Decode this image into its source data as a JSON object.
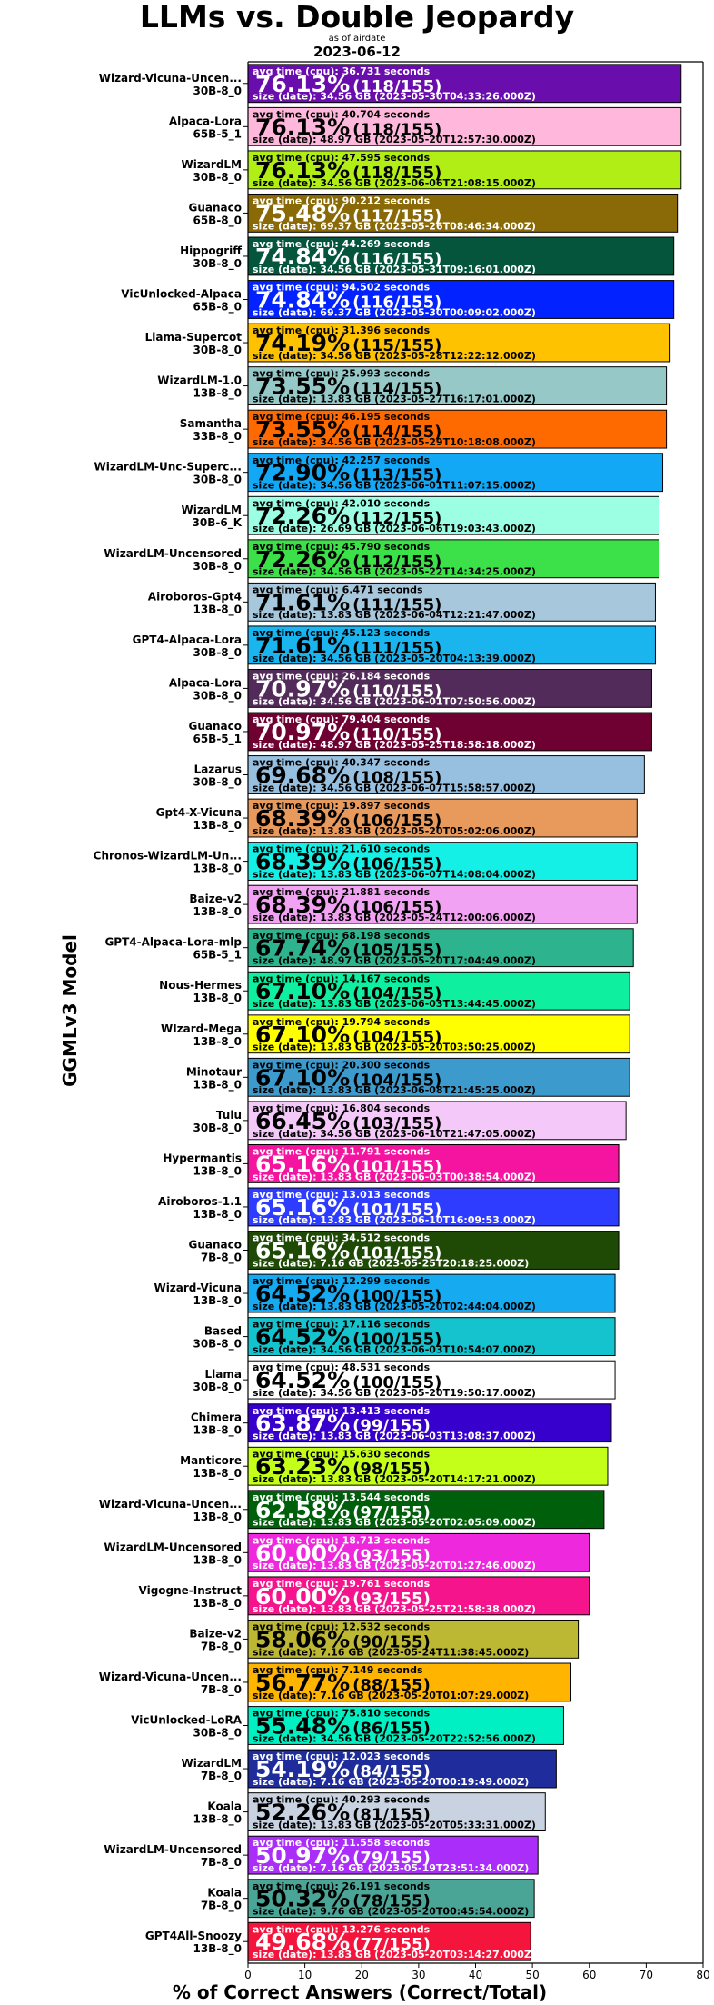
{
  "chart_data": {
    "type": "bar",
    "orientation": "horizontal",
    "title": "LLMs vs. Double Jeopardy",
    "subtitle_small": "as of airdate",
    "subtitle_date": "2023-06-12",
    "xlabel": "% of Correct Answers (Correct/Total)",
    "ylabel": "GGMLv3 Model",
    "xlim": [
      0,
      80
    ],
    "xticks": [
      0,
      10,
      20,
      30,
      40,
      50,
      60,
      70,
      80
    ],
    "grid": false,
    "legend": "none",
    "label_prefix_time": "avg time (cpu): ",
    "label_prefix_size": "size (date): ",
    "bars": [
      {
        "name": "Wizard-Vicuna-Uncen...",
        "quant": "30B-8_0",
        "value": 76.13,
        "correct": "(118/155)",
        "time": "36.731 seconds",
        "size": "34.56 GB (2023-05-30T04:33:26.000Z)",
        "color": "#6a0dad",
        "text": "light"
      },
      {
        "name": "Alpaca-Lora",
        "quant": "65B-5_1",
        "value": 76.13,
        "correct": "(118/155)",
        "time": "40.704 seconds",
        "size": "48.97 GB (2023-05-20T12:57:30.000Z)",
        "color": "#ffb8dc",
        "text": "dark"
      },
      {
        "name": "WizardLM",
        "quant": "30B-8_0",
        "value": 76.13,
        "correct": "(118/155)",
        "time": "47.595 seconds",
        "size": "34.56 GB (2023-06-06T21:08:15.000Z)",
        "color": "#b0ee15",
        "text": "dark"
      },
      {
        "name": "Guanaco",
        "quant": "65B-8_0",
        "value": 75.48,
        "correct": "(117/155)",
        "time": "90.212 seconds",
        "size": "69.37 GB (2023-05-26T08:46:34.000Z)",
        "color": "#8a6a06",
        "text": "light"
      },
      {
        "name": "Hippogriff",
        "quant": "30B-8_0",
        "value": 74.84,
        "correct": "(116/155)",
        "time": "44.269 seconds",
        "size": "34.56 GB (2023-05-31T09:16:01.000Z)",
        "color": "#04553b",
        "text": "light"
      },
      {
        "name": "VicUnlocked-Alpaca",
        "quant": "65B-8_0",
        "value": 74.84,
        "correct": "(116/155)",
        "time": "94.502 seconds",
        "size": "69.37 GB (2023-05-30T00:09:02.000Z)",
        "color": "#0222ff",
        "text": "light"
      },
      {
        "name": "Llama-Supercot",
        "quant": "30B-8_0",
        "value": 74.19,
        "correct": "(115/155)",
        "time": "31.396 seconds",
        "size": "34.56 GB (2023-05-28T12:22:12.000Z)",
        "color": "#ffc200",
        "text": "dark"
      },
      {
        "name": "WizardLM-1.0",
        "quant": "13B-8_0",
        "value": 73.55,
        "correct": "(114/155)",
        "time": "25.993 seconds",
        "size": "13.83 GB (2023-05-27T16:17:01.000Z)",
        "color": "#96c8c8",
        "text": "dark"
      },
      {
        "name": "Samantha",
        "quant": "33B-8_0",
        "value": 73.55,
        "correct": "(114/155)",
        "time": "46.195 seconds",
        "size": "34.56 GB (2023-05-29T10:18:08.000Z)",
        "color": "#ff6a00",
        "text": "dark"
      },
      {
        "name": "WizardLM-Unc-Superc...",
        "quant": "30B-8_0",
        "value": 72.9,
        "correct": "(113/155)",
        "time": "42.257 seconds",
        "size": "34.56 GB (2023-06-01T11:07:15.000Z)",
        "color": "#12a8f5",
        "text": "dark"
      },
      {
        "name": "WizardLM",
        "quant": "30B-6_K",
        "value": 72.26,
        "correct": "(112/155)",
        "time": "42.010 seconds",
        "size": "26.69 GB (2023-06-06T19:03:43.000Z)",
        "color": "#9cffe4",
        "text": "dark"
      },
      {
        "name": "WizardLM-Uncensored",
        "quant": "30B-8_0",
        "value": 72.26,
        "correct": "(112/155)",
        "time": "45.790 seconds",
        "size": "34.56 GB (2023-05-22T14:34:25.000Z)",
        "color": "#3ce048",
        "text": "dark"
      },
      {
        "name": "Airoboros-Gpt4",
        "quant": "13B-8_0",
        "value": 71.61,
        "correct": "(111/155)",
        "time": "6.471 seconds",
        "size": "13.83 GB (2023-06-04T12:21:47.000Z)",
        "color": "#a7c8dc",
        "text": "dark"
      },
      {
        "name": "GPT4-Alpaca-Lora",
        "quant": "30B-8_0",
        "value": 71.61,
        "correct": "(111/155)",
        "time": "45.123 seconds",
        "size": "34.56 GB (2023-05-20T04:13:39.000Z)",
        "color": "#1ab4ee",
        "text": "dark"
      },
      {
        "name": "Alpaca-Lora",
        "quant": "30B-8_0",
        "value": 70.97,
        "correct": "(110/155)",
        "time": "26.184 seconds",
        "size": "34.56 GB (2023-06-01T07:50:56.000Z)",
        "color": "#532b5a",
        "text": "light"
      },
      {
        "name": "Guanaco",
        "quant": "65B-5_1",
        "value": 70.97,
        "correct": "(110/155)",
        "time": "79.404 seconds",
        "size": "48.97 GB (2023-05-25T18:58:18.000Z)",
        "color": "#6e0032",
        "text": "light"
      },
      {
        "name": "Lazarus",
        "quant": "30B-8_0",
        "value": 69.68,
        "correct": "(108/155)",
        "time": "40.347 seconds",
        "size": "34.56 GB (2023-06-07T15:58:57.000Z)",
        "color": "#96bfe0",
        "text": "dark"
      },
      {
        "name": "Gpt4-X-Vicuna",
        "quant": "13B-8_0",
        "value": 68.39,
        "correct": "(106/155)",
        "time": "19.897 seconds",
        "size": "13.83 GB (2023-05-20T05:02:06.000Z)",
        "color": "#e89a5c",
        "text": "dark"
      },
      {
        "name": "Chronos-WizardLM-Un...",
        "quant": "13B-8_0",
        "value": 68.39,
        "correct": "(106/155)",
        "time": "21.610 seconds",
        "size": "13.83 GB (2023-06-07T14:08:04.000Z)",
        "color": "#14f0e6",
        "text": "dark"
      },
      {
        "name": "Baize-v2",
        "quant": "13B-8_0",
        "value": 68.39,
        "correct": "(106/155)",
        "time": "21.881 seconds",
        "size": "13.83 GB (2023-05-24T12:00:06.000Z)",
        "color": "#f2a2f2",
        "text": "dark"
      },
      {
        "name": "GPT4-Alpaca-Lora-mlp",
        "quant": "65B-5_1",
        "value": 67.74,
        "correct": "(105/155)",
        "time": "68.198 seconds",
        "size": "48.97 GB (2023-05-20T17:04:49.000Z)",
        "color": "#2db48e",
        "text": "dark"
      },
      {
        "name": "Nous-Hermes",
        "quant": "13B-8_0",
        "value": 67.1,
        "correct": "(104/155)",
        "time": "14.167 seconds",
        "size": "13.83 GB (2023-06-03T13:44:45.000Z)",
        "color": "#0ef0a0",
        "text": "dark"
      },
      {
        "name": "WIzard-Mega",
        "quant": "13B-8_0",
        "value": 67.1,
        "correct": "(104/155)",
        "time": "19.794 seconds",
        "size": "13.83 GB (2023-05-20T03:50:25.000Z)",
        "color": "#ffff00",
        "text": "dark"
      },
      {
        "name": "Minotaur",
        "quant": "13B-8_0",
        "value": 67.1,
        "correct": "(104/155)",
        "time": "20.300 seconds",
        "size": "13.83 GB (2023-06-08T21:45:25.000Z)",
        "color": "#3c9acd",
        "text": "dark"
      },
      {
        "name": "Tulu",
        "quant": "30B-8_0",
        "value": 66.45,
        "correct": "(103/155)",
        "time": "16.804 seconds",
        "size": "34.56 GB (2023-06-10T21:47:05.000Z)",
        "color": "#f5c8fa",
        "text": "dark"
      },
      {
        "name": "Hypermantis",
        "quant": "13B-8_0",
        "value": 65.16,
        "correct": "(101/155)",
        "time": "11.791 seconds",
        "size": "13.83 GB (2023-06-03T00:38:54.000Z)",
        "color": "#f514a0",
        "text": "light"
      },
      {
        "name": "Airoboros-1.1",
        "quant": "13B-8_0",
        "value": 65.16,
        "correct": "(101/155)",
        "time": "13.013 seconds",
        "size": "13.83 GB (2023-06-10T16:09:53.000Z)",
        "color": "#2d3cff",
        "text": "light"
      },
      {
        "name": "Guanaco",
        "quant": "7B-8_0",
        "value": 65.16,
        "correct": "(101/155)",
        "time": "34.512 seconds",
        "size": "7.16 GB (2023-05-25T20:18:25.000Z)",
        "color": "#1e4a06",
        "text": "light"
      },
      {
        "name": "Wizard-Vicuna",
        "quant": "13B-8_0",
        "value": 64.52,
        "correct": "(100/155)",
        "time": "12.299 seconds",
        "size": "13.83 GB (2023-05-20T02:44:04.000Z)",
        "color": "#16aaf0",
        "text": "dark"
      },
      {
        "name": "Based",
        "quant": "30B-8_0",
        "value": 64.52,
        "correct": "(100/155)",
        "time": "17.116 seconds",
        "size": "34.56 GB (2023-06-03T10:54:07.000Z)",
        "color": "#14c3cd",
        "text": "dark"
      },
      {
        "name": "Llama",
        "quant": "30B-8_0",
        "value": 64.52,
        "correct": "(100/155)",
        "time": "48.531 seconds",
        "size": "34.56 GB (2023-05-20T19:50:17.000Z)",
        "color": "#ffffff",
        "text": "dark"
      },
      {
        "name": "Chimera",
        "quant": "13B-8_0",
        "value": 63.87,
        "correct": "(99/155)",
        "time": "13.413 seconds",
        "size": "13.83 GB (2023-06-03T13:08:37.000Z)",
        "color": "#3700cd",
        "text": "light"
      },
      {
        "name": "Manticore",
        "quant": "13B-8_0",
        "value": 63.23,
        "correct": "(98/155)",
        "time": "15.630 seconds",
        "size": "13.83 GB (2023-05-20T14:17:21.000Z)",
        "color": "#c3ff19",
        "text": "dark"
      },
      {
        "name": "Wizard-Vicuna-Uncen...",
        "quant": "13B-8_0",
        "value": 62.58,
        "correct": "(97/155)",
        "time": "13.544 seconds",
        "size": "13.83 GB (2023-05-20T02:05:09.000Z)",
        "color": "#005f0a",
        "text": "light"
      },
      {
        "name": "WizardLM-Uncensored",
        "quant": "13B-8_0",
        "value": 60.0,
        "correct": "(93/155)",
        "time": "18.713 seconds",
        "size": "13.83 GB (2023-05-20T01:27:46.000Z)",
        "color": "#ee28dc",
        "text": "light"
      },
      {
        "name": "Vigogne-Instruct",
        "quant": "13B-8_0",
        "value": 60.0,
        "correct": "(93/155)",
        "time": "19.761 seconds",
        "size": "13.83 GB (2023-05-25T21:58:38.000Z)",
        "color": "#f5148c",
        "text": "light"
      },
      {
        "name": "Baize-v2",
        "quant": "7B-8_0",
        "value": 58.06,
        "correct": "(90/155)",
        "time": "12.532 seconds",
        "size": "7.16 GB (2023-05-24T11:38:45.000Z)",
        "color": "#bdb834",
        "text": "dark"
      },
      {
        "name": "Wizard-Vicuna-Uncen...",
        "quant": "7B-8_0",
        "value": 56.77,
        "correct": "(88/155)",
        "time": "7.149 seconds",
        "size": "7.16 GB (2023-05-20T01:07:29.000Z)",
        "color": "#ffb400",
        "text": "dark"
      },
      {
        "name": "VicUnlocked-LoRA",
        "quant": "30B-8_0",
        "value": 55.48,
        "correct": "(86/155)",
        "time": "75.810 seconds",
        "size": "34.56 GB (2023-05-20T22:52:56.000Z)",
        "color": "#00f0c3",
        "text": "dark"
      },
      {
        "name": "WizardLM",
        "quant": "7B-8_0",
        "value": 54.19,
        "correct": "(84/155)",
        "time": "12.023 seconds",
        "size": "7.16 GB (2023-05-20T00:19:49.000Z)",
        "color": "#1e2d9b",
        "text": "light"
      },
      {
        "name": "Koala",
        "quant": "13B-8_0",
        "value": 52.26,
        "correct": "(81/155)",
        "time": "40.293 seconds",
        "size": "13.83 GB (2023-05-20T05:33:31.000Z)",
        "color": "#c8d2e1",
        "text": "dark"
      },
      {
        "name": "WizardLM-Uncensored",
        "quant": "7B-8_0",
        "value": 50.97,
        "correct": "(79/155)",
        "time": "11.558 seconds",
        "size": "7.16 GB (2023-05-19T23:51:34.000Z)",
        "color": "#aa2dfa",
        "text": "light"
      },
      {
        "name": "Koala",
        "quant": "7B-8_0",
        "value": 50.32,
        "correct": "(78/155)",
        "time": "26.191 seconds",
        "size": "9.76 GB (2023-05-20T00:45:54.000Z)",
        "color": "#4ba596",
        "text": "dark"
      },
      {
        "name": "GPT4All-Snoozy",
        "quant": "13B-8_0",
        "value": 49.68,
        "correct": "(77/155)",
        "time": "13.276 seconds",
        "size": "13.83 GB (2023-05-20T03:14:27.000Z)",
        "color": "#f5143c",
        "text": "light"
      }
    ]
  }
}
